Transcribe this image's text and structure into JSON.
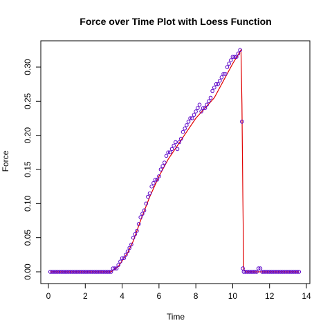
{
  "chart_data": {
    "type": "scatter",
    "title": "Force over Time Plot with Loess Function",
    "xlabel": "Time",
    "ylabel": "Force",
    "xlim": [
      0,
      14
    ],
    "ylim": [
      0,
      0.32
    ],
    "x_ticks": [
      "0",
      "2",
      "4",
      "6",
      "8",
      "10",
      "12",
      "14"
    ],
    "y_ticks": [
      "0.00",
      "0.05",
      "0.10",
      "0.15",
      "0.20",
      "0.25",
      "0.30"
    ],
    "grid": false,
    "legend": "none",
    "colors": {
      "points": "#5a00c8",
      "loess_line": "#e00000"
    },
    "series": [
      {
        "style": "points",
        "x": [
          0.1,
          0.2,
          0.3,
          0.4,
          0.5,
          0.6,
          0.7,
          0.8,
          0.9,
          1.0,
          1.1,
          1.2,
          1.3,
          1.4,
          1.5,
          1.6,
          1.7,
          1.8,
          1.9,
          2.0,
          2.1,
          2.2,
          2.3,
          2.4,
          2.5,
          2.6,
          2.7,
          2.8,
          2.9,
          3.0,
          3.1,
          3.2,
          3.3,
          3.4,
          3.5,
          3.6,
          3.7,
          3.8,
          3.9,
          4.0,
          4.1,
          4.2,
          4.3,
          4.4,
          4.5,
          4.6,
          4.7,
          4.8,
          4.9,
          5.0,
          5.1,
          5.2,
          5.3,
          5.4,
          5.5,
          5.6,
          5.7,
          5.8,
          5.9,
          6.0,
          6.1,
          6.2,
          6.3,
          6.4,
          6.5,
          6.6,
          6.7,
          6.8,
          6.9,
          7.0,
          7.1,
          7.2,
          7.3,
          7.4,
          7.5,
          7.6,
          7.7,
          7.8,
          7.9,
          8.0,
          8.1,
          8.2,
          8.3,
          8.4,
          8.5,
          8.6,
          8.7,
          8.8,
          8.9,
          9.0,
          9.1,
          9.2,
          9.3,
          9.4,
          9.5,
          9.6,
          9.7,
          9.8,
          9.9,
          10.0,
          10.1,
          10.2,
          10.3,
          10.4,
          10.5,
          10.55,
          10.6,
          10.7,
          10.8,
          10.9,
          11.0,
          11.1,
          11.2,
          11.3,
          11.4,
          11.5,
          11.6,
          11.7,
          11.8,
          11.9,
          12.0,
          12.1,
          12.2,
          12.3,
          12.4,
          12.5,
          12.6,
          12.7,
          12.8,
          12.9,
          13.0,
          13.1,
          13.2,
          13.3,
          13.4,
          13.5,
          13.6
        ],
        "y": [
          0,
          0,
          0,
          0,
          0,
          0,
          0,
          0,
          0,
          0,
          0,
          0,
          0,
          0,
          0,
          0,
          0,
          0,
          0,
          0,
          0,
          0,
          0,
          0,
          0,
          0,
          0,
          0,
          0,
          0,
          0,
          0,
          0,
          0,
          0.005,
          0.005,
          0.005,
          0.01,
          0.015,
          0.02,
          0.02,
          0.025,
          0.03,
          0.035,
          0.04,
          0.05,
          0.055,
          0.06,
          0.07,
          0.08,
          0.085,
          0.09,
          0.1,
          0.11,
          0.115,
          0.125,
          0.13,
          0.135,
          0.135,
          0.14,
          0.15,
          0.155,
          0.16,
          0.17,
          0.175,
          0.175,
          0.18,
          0.185,
          0.19,
          0.18,
          0.19,
          0.195,
          0.205,
          0.21,
          0.215,
          0.22,
          0.225,
          0.225,
          0.23,
          0.235,
          0.24,
          0.245,
          0.235,
          0.24,
          0.24,
          0.245,
          0.25,
          0.255,
          0.265,
          0.27,
          0.275,
          0.275,
          0.28,
          0.285,
          0.29,
          0.29,
          0.3,
          0.305,
          0.31,
          0.315,
          0.315,
          0.315,
          0.32,
          0.325,
          0.22,
          0.005,
          0,
          0,
          0,
          0,
          0,
          0,
          0,
          0,
          0.005,
          0.005,
          0,
          0,
          0,
          0,
          0,
          0,
          0,
          0,
          0,
          0,
          0,
          0,
          0,
          0,
          0,
          0,
          0,
          0,
          0,
          0,
          0
        ]
      },
      {
        "style": "loess-line",
        "x": [
          0.1,
          1.0,
          2.0,
          3.0,
          3.4,
          3.6,
          3.8,
          4.0,
          4.3,
          4.6,
          5.0,
          5.5,
          6.0,
          6.5,
          7.0,
          7.5,
          8.0,
          8.5,
          9.0,
          9.5,
          10.0,
          10.3,
          10.45,
          10.5,
          10.55,
          10.6,
          10.7,
          11.0,
          12.0,
          13.0,
          13.6
        ],
        "y": [
          0,
          0,
          0,
          0,
          0,
          0.004,
          0.008,
          0.016,
          0.028,
          0.045,
          0.075,
          0.11,
          0.14,
          0.165,
          0.185,
          0.205,
          0.225,
          0.24,
          0.255,
          0.28,
          0.305,
          0.318,
          0.325,
          0.245,
          0.11,
          0.004,
          0,
          0,
          0,
          0,
          0
        ]
      }
    ]
  }
}
